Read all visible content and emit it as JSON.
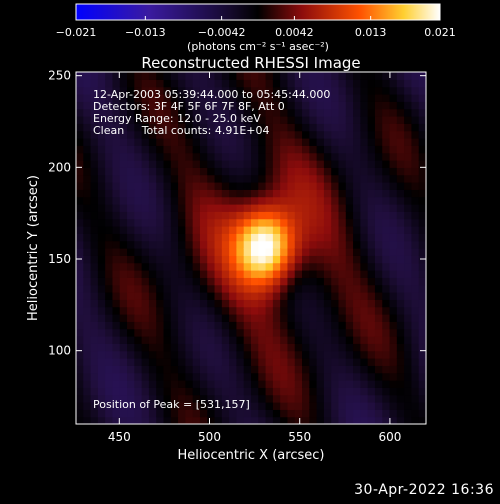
{
  "chart_data": {
    "type": "heatmap",
    "title": "Reconstructed RHESSI Image",
    "xlabel": "Heliocentric X (arcsec)",
    "ylabel": "Heliocentric Y (arcsec)",
    "xlim": [
      426,
      620
    ],
    "ylim": [
      60,
      252
    ],
    "x_ticks": [
      450,
      500,
      550,
      600
    ],
    "y_ticks": [
      100,
      150,
      200,
      250
    ],
    "annotations": [
      "12-Apr-2003 05:39:44.000 to 05:45:44.000",
      "Detectors: 3F 4F 5F 6F 7F 8F, Att 0",
      "Energy Range: 12.0 - 25.0 keV",
      "Clean     Total counts: 4.91E+04"
    ],
    "peak_label": "Position of Peak = [531,157]",
    "peak": {
      "x": 531,
      "y": 157
    },
    "colorbar": {
      "min": -0.021,
      "max": 0.021,
      "ticks": [
        "-0.021",
        "-0.013",
        "-0.0042",
        "0.0042",
        "0.013",
        "0.021"
      ],
      "units": "(photons cm⁻² s⁻¹ asec⁻²)",
      "colors": [
        "#0000ff",
        "#4a1f8c",
        "#000000",
        "#b01010",
        "#ff7a00",
        "#ffe030",
        "#ffffff"
      ]
    }
  },
  "footer": {
    "timestamp": "30-Apr-2022 16:36"
  }
}
